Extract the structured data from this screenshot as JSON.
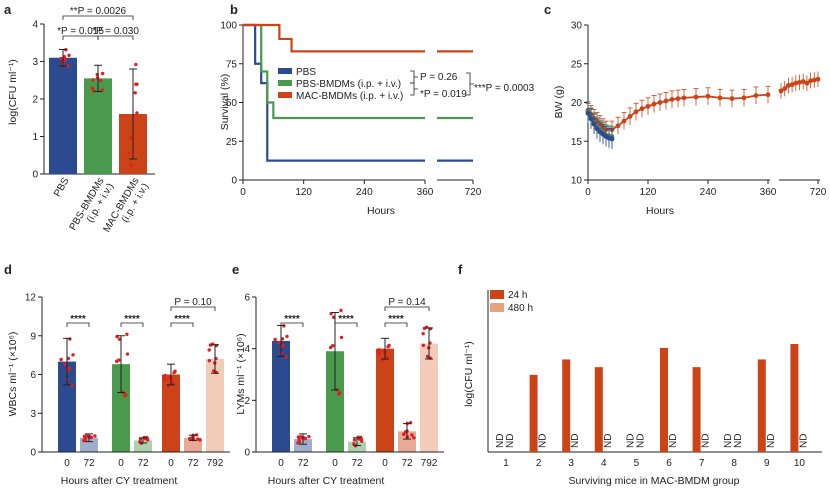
{
  "panels": {
    "a": {
      "letter": "a",
      "ylabel": "log(CFU ml⁻¹)"
    },
    "b": {
      "letter": "b",
      "ylabel": "Survival (%)",
      "xlabel": "Hours"
    },
    "c": {
      "letter": "c",
      "ylabel": "BW (g)",
      "xlabel": "Hours"
    },
    "d": {
      "letter": "d",
      "ylabel": "WBCs ml⁻¹ (×10⁶)",
      "xlabel": "Hours after CY treatment"
    },
    "e": {
      "letter": "e",
      "ylabel": "LYMs ml⁻¹ (×10⁶)",
      "xlabel": "Hours after CY treatment"
    },
    "f": {
      "letter": "f",
      "ylabel": "log(CFU ml⁻¹)",
      "xlabel": "Surviving mice in MAC-BMDM group"
    }
  },
  "colors": {
    "pbs": "#2b4a8f",
    "pbs_bmdm": "#4a9a4d",
    "mac_bmdm": "#cc4317",
    "mac_light": "#e8a27d",
    "dot": "#e02020"
  },
  "chart_data": [
    {
      "id": "a",
      "type": "bar",
      "title": "",
      "categories": [
        "PBS",
        "PBS-BMDMs (i.p. + i.v.)",
        "MAC-BMDMs (i.p. + i.v.)"
      ],
      "cat_lines": [
        [
          "PBS"
        ],
        [
          "PBS-BMDMs",
          "(i.p. + i.v.)"
        ],
        [
          "MAC-BMDMs",
          "(i.p. + i.v.)"
        ]
      ],
      "values": [
        3.1,
        2.55,
        1.6
      ],
      "errors": [
        0.22,
        0.35,
        1.2
      ],
      "ylabel": "log(CFU ml⁻¹)",
      "ylim": [
        0,
        4
      ],
      "yticks": [
        0,
        1,
        2,
        3,
        4
      ],
      "annotations": [
        {
          "from": 0,
          "to": 2,
          "text": "**P = 0.0026"
        },
        {
          "from": 0,
          "to": 1,
          "text": "*P = 0.015"
        },
        {
          "from": 1,
          "to": 2,
          "text": "*P = 0.030"
        }
      ]
    },
    {
      "id": "b",
      "type": "line",
      "title": "",
      "xticks": [
        0,
        120,
        240,
        360,
        720
      ],
      "xticklabels": [
        "0",
        "120",
        "240",
        "360",
        "720"
      ],
      "ylim": [
        0,
        100
      ],
      "yticks": [
        0,
        25,
        50,
        75,
        100
      ],
      "xlabel": "Hours",
      "ylabel": "Survival (%)",
      "series": [
        {
          "name": "PBS",
          "x": [
            0,
            24,
            24,
            36,
            36,
            48,
            48,
            360
          ],
          "values": [
            100,
            100,
            75,
            75,
            62.5,
            62.5,
            12.5,
            12.5
          ]
        },
        {
          "name": "PBS-BMDMs (i.p. + i.v.)",
          "x": [
            0,
            36,
            36,
            48,
            48,
            60,
            60,
            360
          ],
          "values": [
            100,
            100,
            70,
            70,
            50,
            50,
            40,
            40
          ]
        },
        {
          "name": "MAC-BMDMs (i.p. + i.v.)",
          "x": [
            0,
            72,
            72,
            96,
            96,
            360
          ],
          "values": [
            100,
            100,
            91,
            91,
            83,
            83
          ]
        }
      ],
      "tail": [
        {
          "series": "PBS",
          "value": 12.5
        },
        {
          "series": "PBS-BMDMs (i.p. + i.v.)",
          "value": 40
        },
        {
          "series": "MAC-BMDMs (i.p. + i.v.)",
          "value": 83
        }
      ],
      "annotations": [
        "P = 0.26",
        "*P = 0.019",
        "***P = 0.0003"
      ]
    },
    {
      "id": "c",
      "type": "line",
      "title": "",
      "xticks": [
        0,
        120,
        240,
        360,
        720
      ],
      "xticklabels": [
        "0",
        "120",
        "240",
        "360",
        "720"
      ],
      "ylim": [
        10,
        30
      ],
      "yticks": [
        10,
        15,
        20,
        25,
        30
      ],
      "xlabel": "Hours",
      "ylabel": "BW (g)",
      "series": [
        {
          "name": "MAC-BMDMs",
          "x": [
            0,
            6,
            12,
            18,
            24,
            30,
            36,
            48,
            60,
            72,
            84,
            96,
            108,
            120,
            132,
            144,
            156,
            168,
            180,
            192,
            216,
            240,
            264,
            288,
            312,
            336,
            360
          ],
          "values": [
            19,
            18.5,
            18,
            17.6,
            17.2,
            16.8,
            16.5,
            16.5,
            17,
            17.6,
            18.2,
            18.8,
            19.2,
            19.5,
            19.8,
            20,
            20.2,
            20.4,
            20.5,
            20.6,
            20.7,
            20.8,
            20.6,
            20.5,
            20.6,
            20.9,
            21
          ]
        },
        {
          "name": "PBS-BMDMs",
          "x": [
            0,
            6,
            12,
            18,
            24,
            30,
            36,
            42,
            48
          ],
          "values": [
            18.8,
            18,
            17.3,
            16.8,
            16.4,
            16.1,
            15.8,
            15.7,
            15.6
          ]
        },
        {
          "name": "PBS",
          "x": [
            0,
            6,
            12,
            18,
            24,
            30,
            36,
            42,
            48
          ],
          "values": [
            18.6,
            17.9,
            17.2,
            16.6,
            16.2,
            15.9,
            15.6,
            15.4,
            15.3
          ]
        }
      ],
      "tail_x": [
        600,
        612,
        624,
        636,
        648,
        660,
        672,
        684,
        696,
        708,
        720
      ],
      "tail_values": [
        21.5,
        21.8,
        22.2,
        22.3,
        22.5,
        22.6,
        22.7,
        22.5,
        22.8,
        22.9,
        23
      ]
    },
    {
      "id": "d",
      "type": "bar",
      "title": "",
      "groups": [
        {
          "name": "PBS",
          "color_key": "pbs",
          "bars": [
            {
              "label": "0",
              "value": 7,
              "err": 1.8
            },
            {
              "label": "72",
              "value": 1.1,
              "err": 0.3
            }
          ]
        },
        {
          "name": "PBS-BMDMs",
          "color_key": "pbs_bmdm",
          "bars": [
            {
              "label": "0",
              "value": 6.8,
              "err": 2.2
            },
            {
              "label": "72",
              "value": 0.9,
              "err": 0.2
            }
          ]
        },
        {
          "name": "MAC-BMDMs",
          "color_key": "mac_bmdm",
          "bars": [
            {
              "label": "0",
              "value": 6,
              "err": 0.8
            },
            {
              "label": "72",
              "value": 1.1,
              "err": 0.2
            },
            {
              "label": "792",
              "value": 7.2,
              "err": 1.1
            }
          ]
        }
      ],
      "ylim": [
        0,
        12
      ],
      "yticks": [
        0,
        3,
        6,
        9,
        12
      ],
      "ylabel": "WBCs ml⁻¹ (×10⁶)",
      "xlabel": "Hours after CY treatment",
      "annotations": [
        "****",
        "****",
        "****",
        "P = 0.10"
      ]
    },
    {
      "id": "e",
      "type": "bar",
      "title": "",
      "groups": [
        {
          "name": "PBS",
          "color_key": "pbs",
          "bars": [
            {
              "label": "0",
              "value": 4.3,
              "err": 0.6
            },
            {
              "label": "72",
              "value": 0.5,
              "err": 0.2
            }
          ]
        },
        {
          "name": "PBS-BMDMs",
          "color_key": "pbs_bmdm",
          "bars": [
            {
              "label": "0",
              "value": 3.9,
              "err": 1.5
            },
            {
              "label": "72",
              "value": 0.4,
              "err": 0.15
            }
          ]
        },
        {
          "name": "MAC-BMDMs",
          "color_key": "mac_bmdm",
          "bars": [
            {
              "label": "0",
              "value": 4,
              "err": 0.4
            },
            {
              "label": "72",
              "value": 0.8,
              "err": 0.3
            },
            {
              "label": "792",
              "value": 4.2,
              "err": 0.6
            }
          ]
        }
      ],
      "ylim": [
        0,
        6
      ],
      "yticks": [
        0,
        2,
        4,
        6
      ],
      "ylabel": "LYMs ml⁻¹ (×10⁶)",
      "xlabel": "Hours after CY treatment",
      "annotations": [
        "****",
        "****",
        "****",
        "P = 0.14"
      ]
    },
    {
      "id": "f",
      "type": "bar",
      "title": "",
      "categories": [
        "1",
        "2",
        "3",
        "4",
        "5",
        "6",
        "7",
        "8",
        "9",
        "10"
      ],
      "series": [
        {
          "name": "24 h",
          "values": [
            null,
            2.0,
            2.4,
            2.2,
            null,
            2.7,
            2.2,
            null,
            2.4,
            2.8
          ]
        },
        {
          "name": "480 h",
          "values": [
            null,
            null,
            null,
            null,
            null,
            null,
            null,
            null,
            null,
            null
          ]
        }
      ],
      "nd_label": "ND",
      "ylim": [
        0,
        4.2
      ],
      "ylabel": "log(CFU ml⁻¹)",
      "xlabel": "Surviving mice in MAC-BMDM group"
    }
  ]
}
